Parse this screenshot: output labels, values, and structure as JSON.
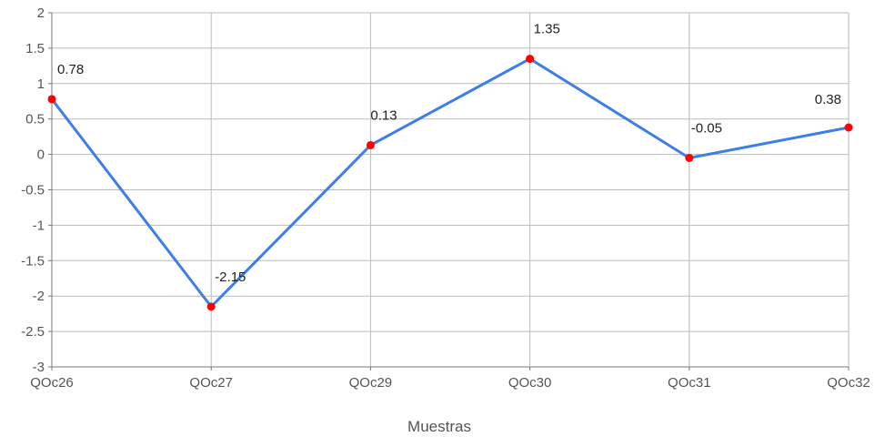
{
  "chart_data": {
    "type": "line",
    "categories": [
      "QOc26",
      "QOc27",
      "QOc29",
      "QOc30",
      "QOc31",
      "QOc32"
    ],
    "series": [
      {
        "values": [
          0.78,
          -2.15,
          0.13,
          1.35,
          -0.05,
          0.38
        ]
      }
    ],
    "data_labels": [
      "0.78",
      "-2.15",
      "0.13",
      "1.35",
      "-0.05",
      "0.38"
    ],
    "yticks": [
      "2",
      "1.5",
      "1",
      "0.5",
      "0",
      "-0.5",
      "-1",
      "-1.5",
      "-2",
      "-2.5",
      "-3"
    ],
    "ytick_values": [
      2,
      1.5,
      1,
      0.5,
      0,
      -0.5,
      -1,
      -1.5,
      -2,
      -2.5,
      -3
    ],
    "ylim": [
      -3,
      2
    ],
    "xlabel": "Muestras",
    "ylabel": "",
    "grid": true,
    "colors": {
      "line": "#3d7ee8",
      "marker": "#ff0000",
      "grid": "#bbbbbb",
      "axis": "#777777"
    }
  }
}
